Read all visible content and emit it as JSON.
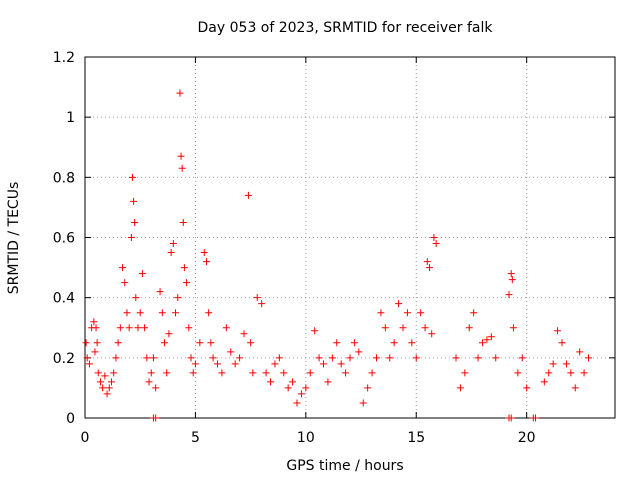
{
  "chart_data": {
    "type": "scatter",
    "title": "Day 053 of 2023, SRMTID for receiver falk",
    "xlabel": "GPS time / hours",
    "ylabel": "SRMTID / TECUs",
    "xlim": [
      0,
      24
    ],
    "ylim": [
      0,
      1.2
    ],
    "xticks": [
      0,
      5,
      10,
      15,
      20
    ],
    "xtick_labels": [
      "0",
      "5",
      "10",
      "15",
      "20"
    ],
    "yticks": [
      0,
      0.2,
      0.4,
      0.6,
      0.8,
      1.0,
      1.2
    ],
    "ytick_labels": [
      "0",
      "0.2",
      "0.4",
      "0.6",
      "0.8",
      "1",
      "1.2"
    ],
    "grid": true,
    "marker": "plus",
    "series": [
      {
        "name": "SRMTID",
        "color": "#ff0000",
        "x": [
          0.05,
          0.1,
          0.2,
          0.3,
          0.4,
          0.45,
          0.5,
          0.55,
          0.6,
          0.7,
          0.8,
          0.9,
          1.0,
          1.1,
          1.2,
          1.3,
          1.4,
          1.5,
          1.6,
          1.7,
          1.8,
          1.9,
          2.0,
          2.1,
          2.15,
          2.2,
          2.25,
          2.3,
          2.4,
          2.5,
          2.6,
          2.7,
          2.8,
          2.9,
          3.0,
          3.1,
          3.2,
          3.4,
          3.5,
          3.6,
          3.7,
          3.8,
          3.9,
          4.0,
          4.1,
          4.2,
          4.3,
          4.35,
          4.4,
          4.45,
          4.5,
          4.6,
          4.7,
          4.8,
          4.9,
          5.0,
          5.2,
          5.4,
          5.5,
          5.6,
          5.7,
          5.8,
          6.0,
          6.2,
          6.4,
          6.6,
          6.8,
          7.0,
          7.2,
          7.4,
          7.5,
          7.6,
          7.8,
          8.0,
          8.2,
          8.4,
          8.6,
          8.8,
          9.0,
          9.2,
          9.4,
          9.6,
          9.8,
          10.0,
          10.2,
          10.4,
          10.6,
          10.8,
          11.0,
          11.2,
          11.4,
          11.6,
          11.8,
          12.0,
          12.2,
          12.4,
          12.6,
          12.8,
          13.0,
          13.2,
          13.4,
          13.6,
          13.8,
          14.0,
          14.2,
          14.4,
          14.6,
          14.8,
          15.0,
          15.2,
          15.4,
          15.5,
          15.6,
          15.7,
          15.8,
          15.9,
          16.8,
          17.0,
          17.2,
          17.4,
          17.6,
          17.8,
          18.0,
          18.2,
          18.4,
          18.6,
          19.2,
          19.3,
          19.35,
          19.4,
          19.6,
          19.8,
          20.0,
          20.8,
          21.0,
          21.2,
          21.4,
          21.6,
          21.8,
          22.0,
          22.2,
          22.4,
          22.6,
          22.8,
          3.1,
          3.2,
          19.2,
          19.3,
          20.3,
          20.4
        ],
        "y": [
          0.25,
          0.2,
          0.18,
          0.3,
          0.32,
          0.22,
          0.3,
          0.25,
          0.15,
          0.12,
          0.1,
          0.14,
          0.08,
          0.1,
          0.12,
          0.15,
          0.2,
          0.25,
          0.3,
          0.5,
          0.45,
          0.35,
          0.3,
          0.6,
          0.8,
          0.72,
          0.65,
          0.4,
          0.3,
          0.35,
          0.48,
          0.3,
          0.2,
          0.12,
          0.15,
          0.2,
          0.1,
          0.42,
          0.35,
          0.25,
          0.15,
          0.28,
          0.55,
          0.58,
          0.35,
          0.4,
          1.08,
          0.87,
          0.83,
          0.65,
          0.5,
          0.45,
          0.3,
          0.2,
          0.15,
          0.18,
          0.25,
          0.55,
          0.52,
          0.35,
          0.25,
          0.2,
          0.18,
          0.15,
          0.3,
          0.22,
          0.18,
          0.2,
          0.28,
          0.74,
          0.25,
          0.15,
          0.4,
          0.38,
          0.15,
          0.12,
          0.18,
          0.2,
          0.15,
          0.1,
          0.12,
          0.05,
          0.08,
          0.1,
          0.15,
          0.29,
          0.2,
          0.18,
          0.12,
          0.2,
          0.25,
          0.18,
          0.15,
          0.2,
          0.25,
          0.22,
          0.05,
          0.1,
          0.15,
          0.2,
          0.35,
          0.3,
          0.2,
          0.25,
          0.38,
          0.3,
          0.35,
          0.25,
          0.2,
          0.35,
          0.3,
          0.52,
          0.5,
          0.28,
          0.6,
          0.58,
          0.2,
          0.1,
          0.15,
          0.3,
          0.35,
          0.2,
          0.25,
          0.26,
          0.27,
          0.2,
          0.41,
          0.48,
          0.46,
          0.3,
          0.15,
          0.2,
          0.1,
          0.12,
          0.15,
          0.18,
          0.29,
          0.25,
          0.18,
          0.15,
          0.1,
          0.22,
          0.15,
          0.2,
          0.0,
          0.0,
          0.0,
          0.0,
          0.0,
          0.0
        ]
      }
    ]
  }
}
